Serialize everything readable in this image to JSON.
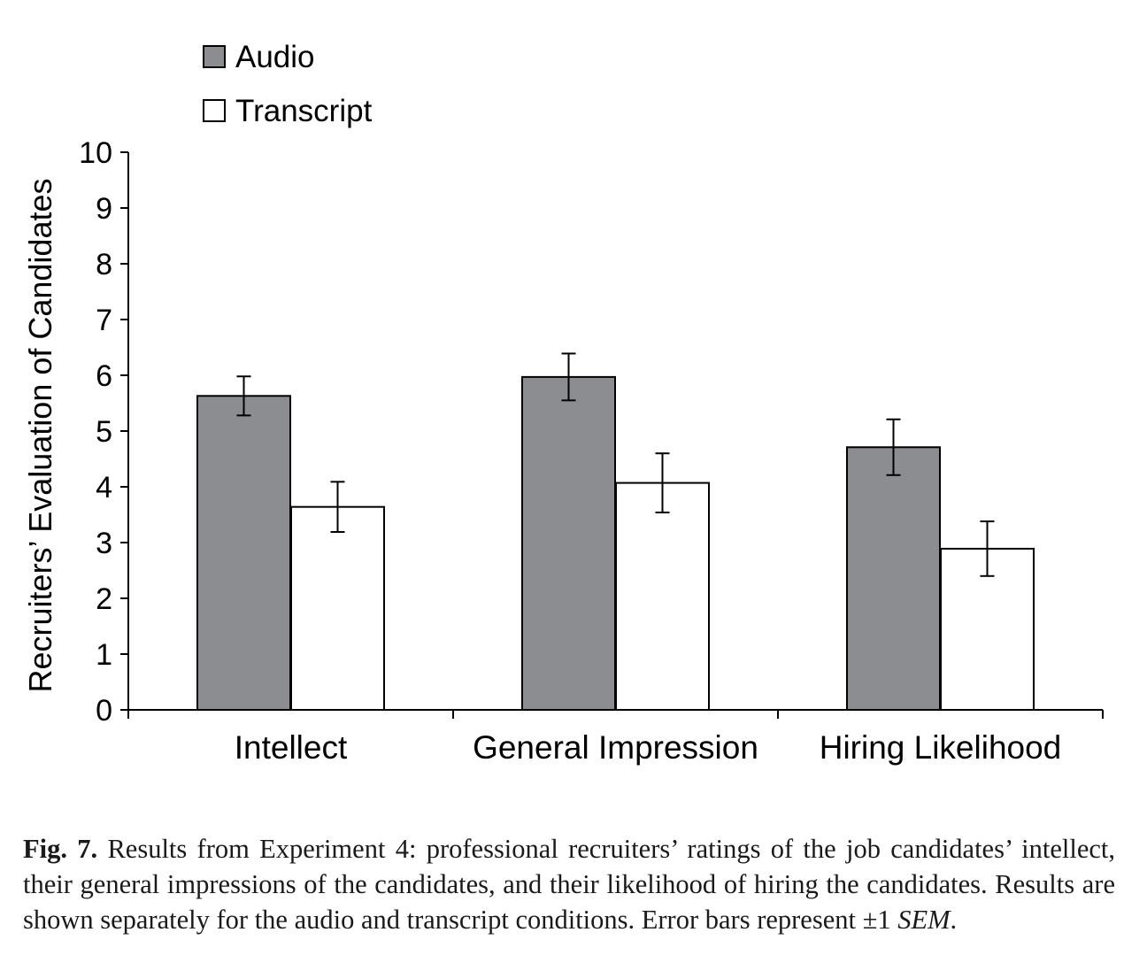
{
  "chart_data": {
    "type": "bar",
    "title": "",
    "xlabel": "",
    "ylabel": "Recruiters’ Evaluation of Candidates",
    "ylim": [
      0,
      10
    ],
    "yticks": [
      "0",
      "1",
      "2",
      "3",
      "4",
      "5",
      "6",
      "7",
      "8",
      "9",
      "10"
    ],
    "categories": [
      "Intellect",
      "General Impression",
      "Hiring Likelihood"
    ],
    "series": [
      {
        "name": "Audio",
        "color": "#8c8d90",
        "values": [
          5.63,
          5.97,
          4.71
        ],
        "error": [
          0.35,
          0.42,
          0.5
        ]
      },
      {
        "name": "Transcript",
        "color": "#ffffff",
        "values": [
          3.64,
          4.07,
          2.89
        ],
        "error": [
          0.45,
          0.53,
          0.49
        ]
      }
    ],
    "error_bars": "±1 SEM",
    "legend_position": "top-left",
    "grid": false
  },
  "caption": {
    "label": "Fig. 7.",
    "text": " Results from Experiment 4: professional recruiters’ ratings of the job candidates’ intellect, their general impressions of the candidates, and their likelihood of hiring the candidates. Results are shown separately for the audio and transcript conditions. Error bars represent ±1 ",
    "emphasis": "SEM",
    "end": "."
  }
}
